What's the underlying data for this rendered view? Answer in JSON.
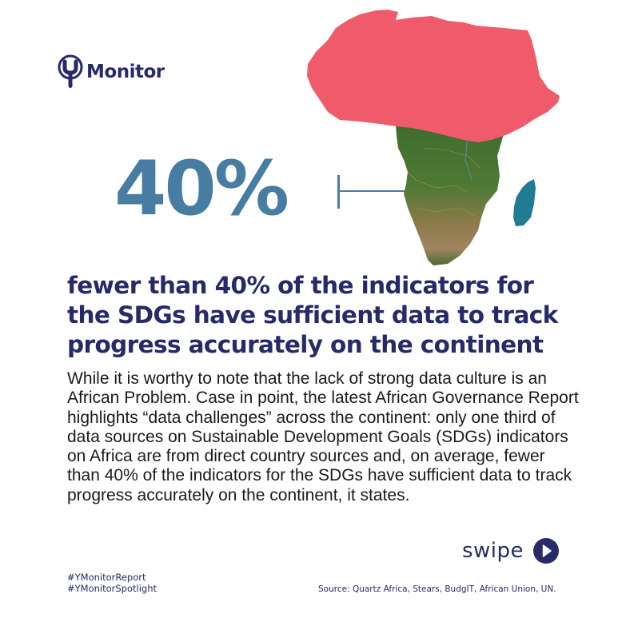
{
  "brand": {
    "logo_text": "Monitor",
    "color_primary": "#262a68",
    "color_stat": "#477da2",
    "color_north_africa": "#ef5b6b",
    "color_madagascar": "#217b92"
  },
  "hero": {
    "stat": "40%",
    "map_icon": "africa-map"
  },
  "headline": "fewer than 40% of the indicators for the SDGs have sufficient data to track progress accurately on the continent",
  "body": "While it is worthy to note that the lack of strong data culture is an African Problem. Case in point, the latest African Governance Report highlights “data challenges” across the continent: only one third of data sources on Sustainable Development Goals (SDGs) indicators on Africa are from direct country sources and, on average, fewer than 40% of the indicators for the SDGs have sufficient data to track progress accurately on the continent, it states.",
  "swipe": {
    "label": "swipe",
    "icon": "play-circle-icon"
  },
  "footer": {
    "hashtags": [
      "#YMonitorReport",
      "#YMonitorSpotlight"
    ],
    "source": "Source: Quartz Africa, Stears, BudgIT, African Union, UN."
  }
}
